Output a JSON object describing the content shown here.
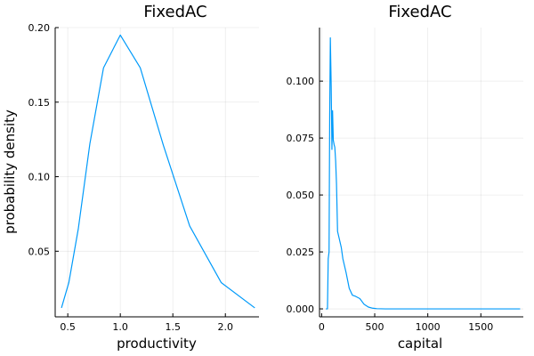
{
  "chart_data": [
    {
      "type": "line",
      "title": "FixedAC",
      "xlabel": "productivity",
      "ylabel": "probability density",
      "xlim": [
        0.38,
        2.32
      ],
      "ylim": [
        0.006,
        0.2
      ],
      "xticks": [
        0.5,
        1.0,
        1.5,
        2.0
      ],
      "xtick_labels": [
        "0.5",
        "1.0",
        "1.5",
        "2.0"
      ],
      "yticks": [
        0.05,
        0.1,
        0.15,
        0.2
      ],
      "ytick_labels": [
        "0.05",
        "0.10",
        "0.15",
        "0.20"
      ],
      "grid": true,
      "color": "#009AFA",
      "series": [
        {
          "x": [
            0.44,
            0.51,
            0.6,
            0.71,
            0.84,
            1.0,
            1.19,
            1.41,
            1.66,
            1.96,
            2.28
          ],
          "y": [
            0.012,
            0.029,
            0.065,
            0.122,
            0.173,
            0.195,
            0.173,
            0.121,
            0.067,
            0.029,
            0.012
          ]
        }
      ]
    },
    {
      "type": "line",
      "title": "FixedAC",
      "xlabel": "capital",
      "ylabel": "",
      "xlim": [
        -20,
        1900
      ],
      "ylim": [
        -0.0035,
        0.1235
      ],
      "xticks": [
        0,
        500,
        1000,
        1500
      ],
      "xtick_labels": [
        "0",
        "500",
        "1000",
        "1500"
      ],
      "yticks": [
        0.0,
        0.025,
        0.05,
        0.075,
        0.1
      ],
      "ytick_labels": [
        "0.000",
        "0.025",
        "0.050",
        "0.075",
        "0.100"
      ],
      "grid": true,
      "color": "#009AFA",
      "series": [
        {
          "x": [
            40,
            55,
            62,
            70,
            76,
            82,
            90,
            97,
            103,
            110,
            118,
            124,
            132,
            140,
            150,
            160,
            170,
            185,
            200,
            230,
            260,
            290,
            320,
            360,
            400,
            440,
            480,
            520,
            600,
            800,
            1200,
            1600,
            1870
          ],
          "y": [
            0.0,
            0.0,
            0.022,
            0.025,
            0.085,
            0.119,
            0.098,
            0.07,
            0.087,
            0.074,
            0.072,
            0.071,
            0.065,
            0.055,
            0.034,
            0.032,
            0.03,
            0.027,
            0.022,
            0.016,
            0.009,
            0.006,
            0.0055,
            0.0045,
            0.002,
            0.0008,
            0.0003,
            0.0001,
            0.0,
            0.0,
            0.0,
            0.0,
            0.0
          ]
        }
      ]
    }
  ]
}
